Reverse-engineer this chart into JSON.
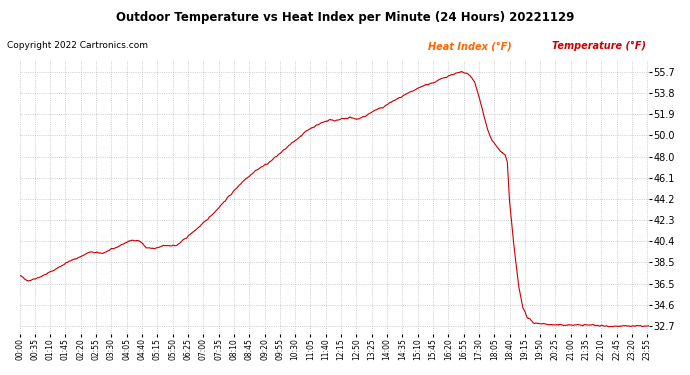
{
  "title": "Outdoor Temperature vs Heat Index per Minute (24 Hours) 20221129",
  "copyright": "Copyright 2022 Cartronics.com",
  "legend_heat": "Heat Index (°F)",
  "legend_temp": "Temperature (°F)",
  "line_color": "#cc0000",
  "heat_index_color": "#ff6600",
  "temp_color": "#cc0000",
  "background_color": "#ffffff",
  "grid_color": "#999999",
  "title_color": "#000000",
  "copyright_color": "#000000",
  "ylim": [
    32.0,
    56.8
  ],
  "yticks": [
    32.7,
    34.6,
    36.5,
    38.5,
    40.4,
    42.3,
    44.2,
    46.1,
    48.0,
    50.0,
    51.9,
    53.8,
    55.7
  ],
  "total_minutes": 1440,
  "x_tick_interval": 35,
  "keypoints": [
    [
      0,
      37.3
    ],
    [
      20,
      36.8
    ],
    [
      50,
      37.2
    ],
    [
      80,
      37.8
    ],
    [
      110,
      38.5
    ],
    [
      140,
      39.0
    ],
    [
      160,
      39.4
    ],
    [
      190,
      39.3
    ],
    [
      220,
      39.8
    ],
    [
      245,
      40.3
    ],
    [
      260,
      40.5
    ],
    [
      275,
      40.4
    ],
    [
      290,
      39.8
    ],
    [
      310,
      39.7
    ],
    [
      330,
      40.0
    ],
    [
      360,
      40.0
    ],
    [
      390,
      41.0
    ],
    [
      420,
      42.0
    ],
    [
      450,
      43.2
    ],
    [
      480,
      44.5
    ],
    [
      510,
      45.8
    ],
    [
      540,
      46.8
    ],
    [
      570,
      47.5
    ],
    [
      600,
      48.5
    ],
    [
      630,
      49.5
    ],
    [
      660,
      50.5
    ],
    [
      690,
      51.1
    ],
    [
      710,
      51.4
    ],
    [
      720,
      51.3
    ],
    [
      740,
      51.5
    ],
    [
      755,
      51.6
    ],
    [
      770,
      51.4
    ],
    [
      790,
      51.7
    ],
    [
      810,
      52.2
    ],
    [
      830,
      52.5
    ],
    [
      850,
      53.0
    ],
    [
      875,
      53.5
    ],
    [
      900,
      54.0
    ],
    [
      925,
      54.5
    ],
    [
      950,
      54.8
    ],
    [
      970,
      55.2
    ],
    [
      990,
      55.5
    ],
    [
      1000,
      55.6
    ],
    [
      1010,
      55.7
    ],
    [
      1020,
      55.6
    ],
    [
      1030,
      55.4
    ],
    [
      1040,
      54.8
    ],
    [
      1050,
      53.5
    ],
    [
      1060,
      52.0
    ],
    [
      1070,
      50.5
    ],
    [
      1080,
      49.5
    ],
    [
      1090,
      49.0
    ],
    [
      1100,
      48.5
    ],
    [
      1110,
      48.2
    ],
    [
      1115,
      47.5
    ],
    [
      1120,
      44.0
    ],
    [
      1130,
      40.0
    ],
    [
      1140,
      36.5
    ],
    [
      1150,
      34.5
    ],
    [
      1160,
      33.5
    ],
    [
      1175,
      33.0
    ],
    [
      1200,
      32.9
    ],
    [
      1220,
      32.8
    ],
    [
      1250,
      32.8
    ],
    [
      1280,
      32.8
    ],
    [
      1310,
      32.8
    ],
    [
      1340,
      32.7
    ],
    [
      1380,
      32.7
    ],
    [
      1410,
      32.7
    ],
    [
      1439,
      32.7
    ]
  ]
}
